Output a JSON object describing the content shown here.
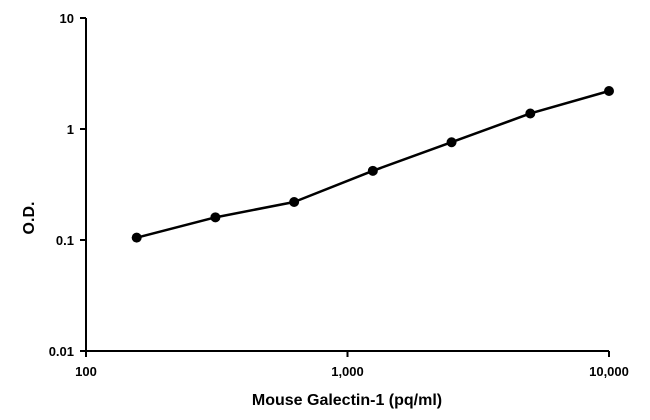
{
  "chart_data": {
    "type": "line",
    "title": "",
    "xlabel": "Mouse Galectin-1 (pq/ml)",
    "ylabel": "O.D.",
    "x_scale": "log",
    "y_scale": "log",
    "xlim": [
      100,
      10000
    ],
    "ylim": [
      0.01,
      10
    ],
    "x_ticks": [
      100,
      1000,
      10000
    ],
    "x_tick_labels": [
      "100",
      "1,000",
      "10,000"
    ],
    "y_ticks": [
      0.01,
      0.1,
      1,
      10
    ],
    "y_tick_labels": [
      "0.01",
      "0.1",
      "1",
      "10"
    ],
    "grid": false,
    "legend": "none",
    "series": [
      {
        "color": "#000000",
        "marker": "circle",
        "points": [
          {
            "x": 156.25,
            "y": 0.105
          },
          {
            "x": 312.5,
            "y": 0.16
          },
          {
            "x": 625,
            "y": 0.22
          },
          {
            "x": 1250,
            "y": 0.42
          },
          {
            "x": 2500,
            "y": 0.76
          },
          {
            "x": 5000,
            "y": 1.38
          },
          {
            "x": 10000,
            "y": 2.2
          }
        ]
      }
    ]
  }
}
